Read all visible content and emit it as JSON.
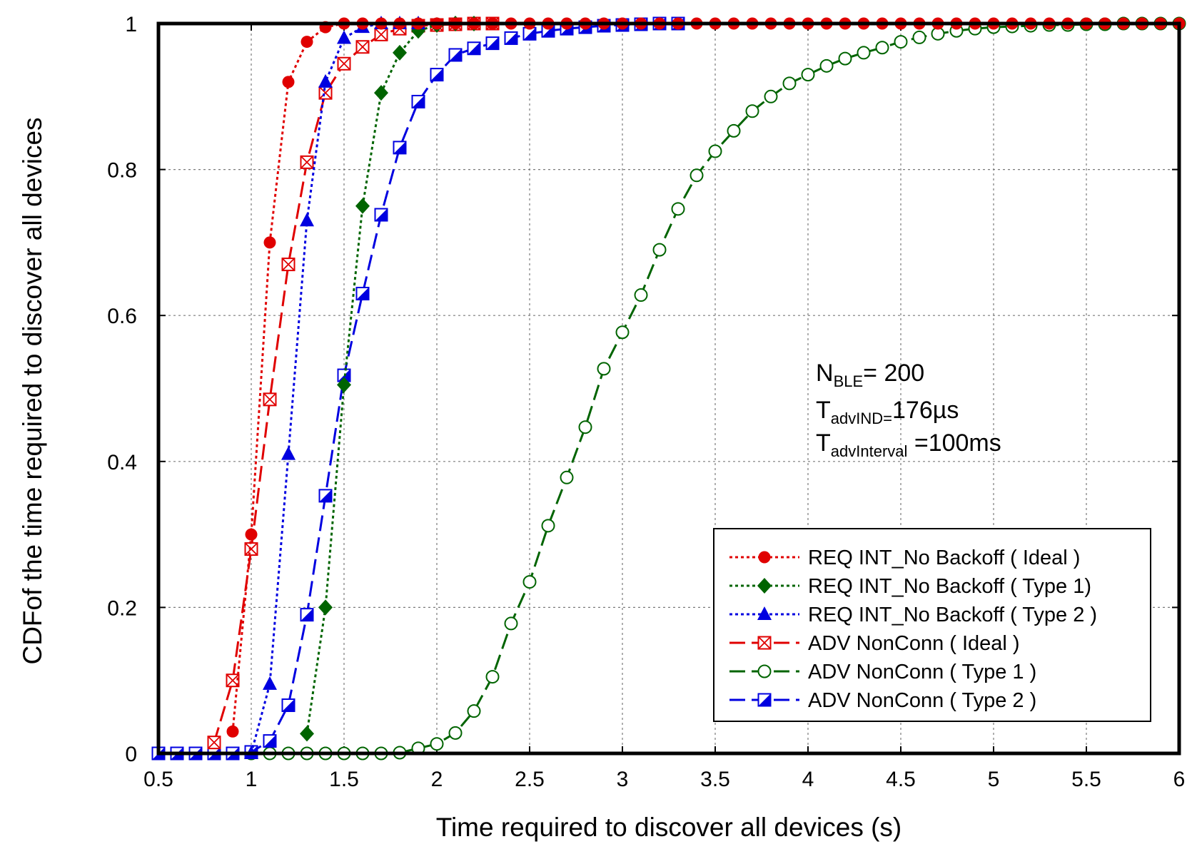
{
  "chart_data": {
    "type": "line",
    "title": "",
    "xlabel": "Time required to discover all devices (s)",
    "ylabel": "CDFof the time required to discover all devices",
    "xlim": [
      0.5,
      6
    ],
    "ylim": [
      0,
      1
    ],
    "xticks": [
      "0.5",
      "1",
      "1.5",
      "2",
      "2.5",
      "3",
      "3.5",
      "4",
      "4.5",
      "5",
      "5.5",
      "6"
    ],
    "yticks": [
      "0",
      "0.2",
      "0.4",
      "0.6",
      "0.8",
      "1"
    ],
    "grid": true,
    "legend_position": "bottom-right",
    "annotation": {
      "n_main": "N",
      "n_sub": "BLE",
      "n_value": "= 200",
      "t1_main": "T",
      "t1_sub": "advIND=",
      "t1_value": "176µs",
      "t2_main": "T",
      "t2_sub": "advInterval",
      "t2_value": " =100ms"
    },
    "series": [
      {
        "name": "REQ INT_No Backoff ( Ideal )",
        "color": "#e00000",
        "marker": "circle",
        "line": "dotted",
        "x": [
          0.9,
          1.0,
          1.1,
          1.2,
          1.3,
          1.4,
          1.5,
          1.6,
          1.7,
          1.8,
          1.9,
          2.0,
          2.1,
          2.2,
          2.3,
          2.4,
          2.5,
          2.6,
          2.7,
          2.8,
          2.9,
          3.0,
          3.1,
          3.2,
          3.3,
          3.4,
          3.5,
          3.6,
          3.7,
          3.8,
          3.9,
          4.0,
          4.1,
          4.2,
          4.3,
          4.4,
          4.5,
          4.6,
          4.7,
          4.8,
          4.9,
          5.0,
          5.1,
          5.2,
          5.3,
          5.4,
          5.5,
          5.6,
          5.7,
          5.8,
          5.9,
          6.0
        ],
        "y": [
          0.03,
          0.3,
          0.7,
          0.92,
          0.975,
          0.995,
          1,
          1,
          1,
          1,
          1,
          1,
          1,
          1,
          1,
          1,
          1,
          1,
          1,
          1,
          1,
          1,
          1,
          1,
          1,
          1,
          1,
          1,
          1,
          1,
          1,
          1,
          1,
          1,
          1,
          1,
          1,
          1,
          1,
          1,
          1,
          1,
          1,
          1,
          1,
          1,
          1,
          1,
          1,
          1,
          1,
          1
        ]
      },
      {
        "name": "REQ INT_No Backoff ( Type 1)",
        "color": "#006400",
        "marker": "diamond",
        "line": "dotted",
        "x": [
          1.3,
          1.4,
          1.5,
          1.6,
          1.7,
          1.8,
          1.9,
          2.0,
          2.1,
          2.2
        ],
        "y": [
          0.027,
          0.2,
          0.505,
          0.75,
          0.905,
          0.96,
          0.99,
          0.998,
          1,
          1
        ]
      },
      {
        "name": "REQ INT_No Backoff ( Type 2 )",
        "color": "#0000e0",
        "marker": "triangle",
        "line": "dotted",
        "x": [
          1.0,
          1.1,
          1.2,
          1.3,
          1.4,
          1.5,
          1.6,
          1.7,
          1.8,
          1.9
        ],
        "y": [
          0.0,
          0.095,
          0.41,
          0.73,
          0.92,
          0.98,
          0.995,
          1,
          1,
          1
        ]
      },
      {
        "name": "ADV NonConn ( Ideal )",
        "color": "#e00000",
        "marker": "square-x",
        "line": "dashed",
        "x": [
          0.8,
          0.9,
          1.0,
          1.1,
          1.2,
          1.3,
          1.4,
          1.5,
          1.6,
          1.7,
          1.8,
          1.9,
          2.0,
          2.1,
          2.2,
          2.3
        ],
        "y": [
          0.015,
          0.1,
          0.28,
          0.485,
          0.67,
          0.81,
          0.905,
          0.945,
          0.968,
          0.985,
          0.993,
          0.997,
          0.998,
          0.999,
          1,
          1
        ]
      },
      {
        "name": "ADV NonConn ( Type 1 )",
        "color": "#006400",
        "marker": "circle-open",
        "line": "dashed",
        "x": [
          0.5,
          0.6,
          0.7,
          0.8,
          0.9,
          1.0,
          1.1,
          1.2,
          1.3,
          1.4,
          1.5,
          1.6,
          1.7,
          1.8,
          1.9,
          2.0,
          2.1,
          2.2,
          2.3,
          2.4,
          2.5,
          2.6,
          2.7,
          2.8,
          2.9,
          3.0,
          3.1,
          3.2,
          3.3,
          3.4,
          3.5,
          3.6,
          3.7,
          3.8,
          3.9,
          4.0,
          4.1,
          4.2,
          4.3,
          4.4,
          4.5,
          4.6,
          4.7,
          4.8,
          4.9,
          5.0,
          5.1,
          5.2,
          5.3,
          5.4,
          5.5,
          5.6,
          5.7,
          5.8,
          5.9,
          6.0
        ],
        "y": [
          0,
          0,
          0,
          0,
          0,
          0,
          0,
          0,
          0,
          0,
          0,
          0,
          0,
          0.001,
          0.007,
          0.013,
          0.028,
          0.058,
          0.105,
          0.178,
          0.235,
          0.312,
          0.378,
          0.447,
          0.527,
          0.577,
          0.628,
          0.69,
          0.746,
          0.792,
          0.825,
          0.853,
          0.88,
          0.9,
          0.918,
          0.93,
          0.942,
          0.952,
          0.96,
          0.967,
          0.975,
          0.981,
          0.986,
          0.99,
          0.993,
          0.995,
          0.996,
          0.997,
          0.998,
          0.998,
          0.999,
          0.999,
          1,
          1,
          1,
          1
        ]
      },
      {
        "name": "ADV NonConn ( Type 2 )",
        "color": "#0000e0",
        "marker": "square-half",
        "line": "dashed",
        "x": [
          0.5,
          0.6,
          0.7,
          0.8,
          0.9,
          1.0,
          1.1,
          1.2,
          1.3,
          1.4,
          1.5,
          1.6,
          1.7,
          1.8,
          1.9,
          2.0,
          2.1,
          2.2,
          2.3,
          2.4,
          2.5,
          2.6,
          2.7,
          2.8,
          2.9,
          3.0,
          3.1,
          3.2,
          3.3
        ],
        "y": [
          0,
          0,
          0,
          0,
          0,
          0.002,
          0.017,
          0.066,
          0.19,
          0.353,
          0.518,
          0.63,
          0.738,
          0.83,
          0.893,
          0.93,
          0.957,
          0.966,
          0.973,
          0.98,
          0.986,
          0.99,
          0.993,
          0.995,
          0.997,
          0.998,
          0.999,
          1,
          1
        ]
      }
    ]
  }
}
